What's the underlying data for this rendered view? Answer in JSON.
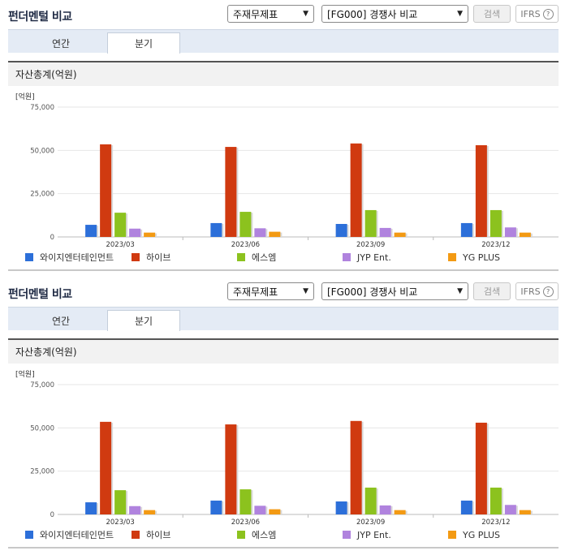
{
  "panels": [
    {
      "title": "펀더멘털 비교",
      "select_type": "주재무제표",
      "select_compare": "[FG000] 경쟁사 비교",
      "search_label": "검색",
      "ifrs_label": "IFRS",
      "tabs": [
        "연간",
        "분기"
      ],
      "active_tab": 1,
      "section_title": "자산총계(억원)"
    },
    {
      "title": "펀더멘털 비교",
      "select_type": "주재무제표",
      "select_compare": "[FG000] 경쟁사 비교",
      "search_label": "검색",
      "ifrs_label": "IFRS",
      "tabs": [
        "연간",
        "분기"
      ],
      "active_tab": 1,
      "section_title": "자산총계(억원)"
    }
  ],
  "chart_data": {
    "type": "bar",
    "unit_label": "[억원]",
    "categories": [
      "2023/03",
      "2023/06",
      "2023/09",
      "2023/12"
    ],
    "ylim": [
      0,
      75000
    ],
    "yticks": [
      0,
      25000,
      50000,
      75000
    ],
    "ytick_labels": [
      "0",
      "25,000",
      "50,000",
      "75,000"
    ],
    "grid": true,
    "legend_position": "bottom",
    "series": [
      {
        "name": "와이지엔터테인먼트",
        "color": "#2c6fd9",
        "values": [
          7000,
          8000,
          7500,
          8000
        ]
      },
      {
        "name": "하이브",
        "color": "#d03a10",
        "values": [
          53500,
          52000,
          54000,
          53000
        ]
      },
      {
        "name": "에스엠",
        "color": "#8cc21e",
        "values": [
          14000,
          14500,
          15500,
          15500
        ]
      },
      {
        "name": "JYP Ent.",
        "color": "#b083de",
        "values": [
          4800,
          5000,
          5200,
          5500
        ]
      },
      {
        "name": "YG PLUS",
        "color": "#f39a13",
        "values": [
          2500,
          3000,
          2500,
          2500
        ]
      }
    ]
  }
}
